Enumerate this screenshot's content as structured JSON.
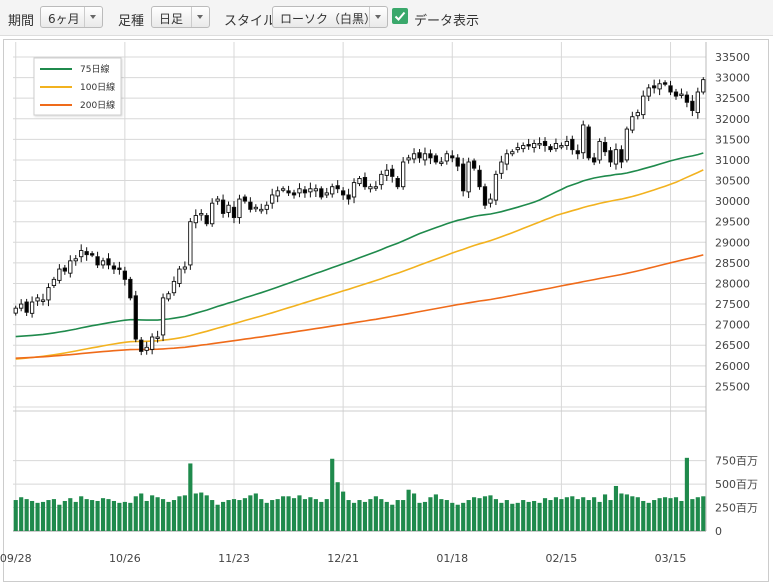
{
  "toolbar": {
    "period_label": "期間",
    "period_value": "6ヶ月",
    "candle_label": "足種",
    "candle_value": "日足",
    "style_label": "スタイル",
    "style_value": "ローソク（白黒）",
    "data_label": "データ表示",
    "data_checked": true
  },
  "colors": {
    "ma75": "#1f8a4c",
    "ma100": "#f2b21f",
    "ma200": "#ef6b1a",
    "volume": "#1f8a4c",
    "candle_up_fill": "#ffffff",
    "candle_down_fill": "#000000",
    "grid": "#d8d8d8"
  },
  "chart_data": {
    "type": "candlestick",
    "price_ylim": [
      25000,
      33500
    ],
    "price_ticks": [
      "33500",
      "33000",
      "32500",
      "32000",
      "31500",
      "31000",
      "30500",
      "30000",
      "29500",
      "29000",
      "28500",
      "28000",
      "27500",
      "27000",
      "26500",
      "26000",
      "25500"
    ],
    "volume_ylim": [
      0,
      750
    ],
    "volume_ticks": [
      "750百万",
      "500百万",
      "250百万",
      "0"
    ],
    "x_tick_labels": [
      "09/28",
      "10/26",
      "11/23",
      "12/21",
      "01/18",
      "02/15",
      "03/15"
    ],
    "x_tick_index": [
      0,
      20,
      40,
      60,
      80,
      100,
      120
    ],
    "grid": true,
    "legend_position": "top-left",
    "legend": [
      {
        "name": "75日線",
        "color": "#1f8a4c"
      },
      {
        "name": "100日線",
        "color": "#f2b21f"
      },
      {
        "name": "200日線",
        "color": "#ef6b1a"
      }
    ],
    "close": [
      27400,
      27500,
      27300,
      27550,
      27650,
      27600,
      27900,
      28100,
      28350,
      28300,
      28550,
      28600,
      28800,
      28700,
      28700,
      28450,
      28550,
      28450,
      28350,
      28350,
      28100,
      27650,
      26650,
      26350,
      26450,
      26700,
      26700,
      27650,
      27750,
      28050,
      28350,
      28400,
      29500,
      29650,
      29700,
      29450,
      29950,
      30050,
      29700,
      29900,
      29600,
      30050,
      30000,
      29800,
      29850,
      29800,
      29900,
      30150,
      30250,
      30300,
      30200,
      30150,
      30300,
      30200,
      30300,
      30300,
      30100,
      30200,
      30350,
      30300,
      30150,
      30050,
      30450,
      30550,
      30350,
      30350,
      30350,
      30650,
      30750,
      30600,
      30350,
      30950,
      31050,
      31150,
      31050,
      31150,
      31050,
      30950,
      30950,
      31150,
      31050,
      30850,
      30250,
      30950,
      30800,
      30350,
      29900,
      30050,
      30650,
      30950,
      31150,
      31200,
      31300,
      31350,
      31350,
      31400,
      31400,
      31350,
      31250,
      31400,
      31350,
      31450,
      31250,
      31150,
      31850,
      31050,
      30950,
      31450,
      31200,
      30950,
      31250,
      30950,
      31750,
      32050,
      32150,
      32550,
      32750,
      32750,
      32850,
      32850,
      32650,
      32550,
      32600,
      32400,
      32200,
      32650,
      32950
    ]
  },
  "volume_data": [
    330,
    360,
    340,
    320,
    300,
    310,
    330,
    340,
    280,
    320,
    350,
    310,
    370,
    340,
    330,
    320,
    350,
    340,
    320,
    300,
    310,
    300,
    370,
    400,
    320,
    380,
    360,
    340,
    310,
    330,
    370,
    380,
    720,
    400,
    410,
    380,
    330,
    280,
    310,
    330,
    340,
    330,
    350,
    380,
    400,
    340,
    300,
    330,
    340,
    370,
    370,
    350,
    380,
    340,
    360,
    340,
    310,
    340,
    770,
    520,
    420,
    330,
    300,
    330,
    310,
    340,
    370,
    340,
    310,
    280,
    330,
    330,
    440,
    400,
    300,
    310,
    360,
    390,
    340,
    330,
    300,
    280,
    300,
    330,
    360,
    350,
    370,
    380,
    340,
    300,
    330,
    290,
    300,
    330,
    310,
    320,
    300,
    350,
    330,
    360,
    340,
    360,
    370,
    340,
    360,
    330,
    360,
    310,
    390,
    330,
    480,
    400,
    390,
    370,
    360,
    320,
    300,
    330,
    350,
    360,
    350,
    360,
    320,
    780,
    340,
    360,
    370
  ]
}
